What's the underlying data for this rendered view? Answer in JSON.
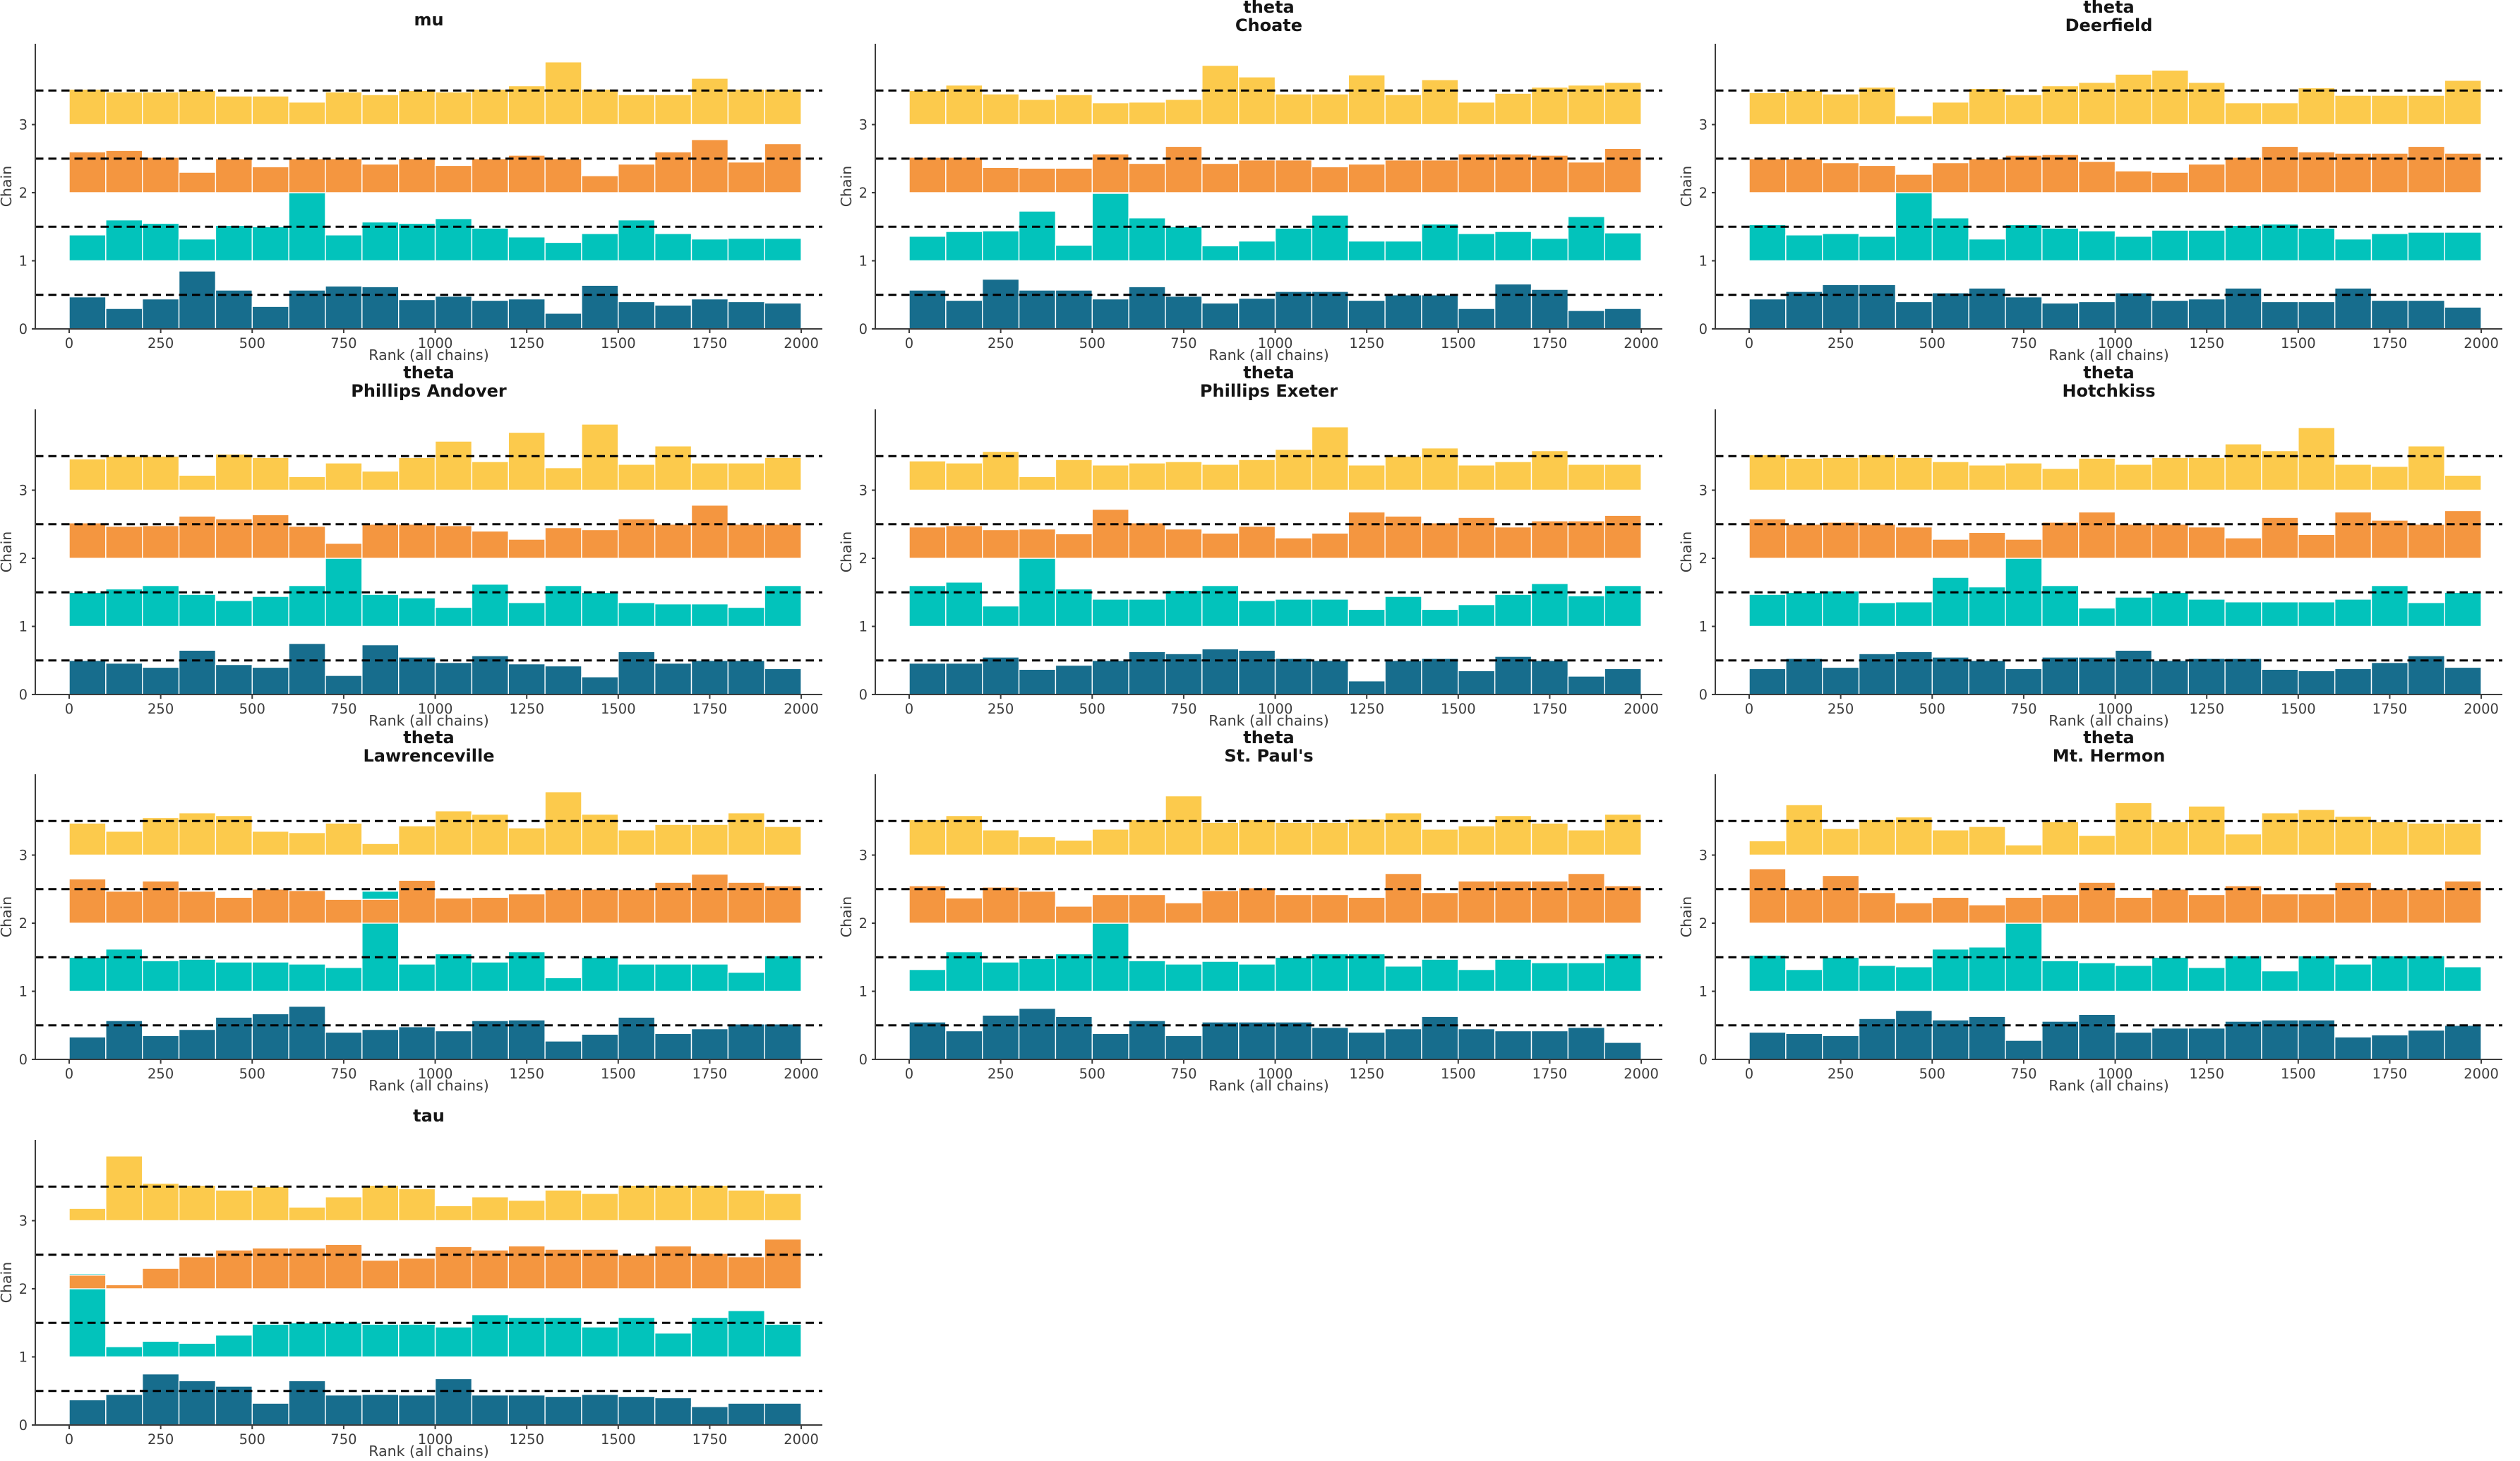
{
  "figure": {
    "background": "#ffffff",
    "grid": {
      "columns": 3,
      "rows": 4,
      "filled_panels": 10,
      "empty_cells": 2
    }
  },
  "chart_data": {
    "type": "bar",
    "subtype": "mcmc-rank-histogram-grid",
    "title": "",
    "xlabel": "Rank (all chains)",
    "ylabel": "Chain",
    "x": {
      "label": "Rank (all chains)",
      "range": [
        0,
        2000
      ],
      "bins": 20,
      "bin_width": 100,
      "ticks": [
        0,
        250,
        500,
        750,
        1000,
        1250,
        1500,
        1750,
        2000
      ],
      "tick_labels": [
        "0",
        "250",
        "500",
        "750",
        "1000",
        "1250",
        "1500",
        "1750",
        "2000"
      ]
    },
    "y": {
      "label": "Chain",
      "range": [
        0,
        4.19
      ],
      "ticks": [
        0,
        1,
        2,
        3
      ],
      "tick_labels": [
        "0",
        "1",
        "2",
        "3"
      ]
    },
    "reference_lines": [
      0.5,
      1.5,
      2.5,
      3.5
    ],
    "reference_line_color": "#000000",
    "grid_on": false,
    "legend": "none",
    "chains": [
      {
        "name": "chain-1",
        "baseline": 0,
        "color": "#176D8D"
      },
      {
        "name": "chain-2",
        "baseline": 1,
        "color": "#02C3BB"
      },
      {
        "name": "chain-3",
        "baseline": 2,
        "color": "#F49640"
      },
      {
        "name": "chain-4",
        "baseline": 3,
        "color": "#FCCA4C"
      }
    ],
    "panels": [
      {
        "title_lines": [
          "mu"
        ],
        "chains": [
          [
            0.47,
            0.3,
            0.44,
            0.85,
            0.57,
            0.33,
            0.57,
            0.63,
            0.62,
            0.43,
            0.48,
            0.42,
            0.44,
            0.23,
            0.64,
            0.4,
            0.35,
            0.44,
            0.4,
            0.38
          ],
          [
            0.38,
            0.6,
            0.55,
            0.32,
            0.52,
            0.5,
            1.0,
            0.38,
            0.57,
            0.55,
            0.62,
            0.48,
            0.35,
            0.27,
            0.4,
            0.6,
            0.4,
            0.32,
            0.33,
            0.33
          ],
          [
            0.6,
            0.62,
            0.52,
            0.3,
            0.5,
            0.38,
            0.5,
            0.5,
            0.42,
            0.5,
            0.4,
            0.5,
            0.55,
            0.5,
            0.25,
            0.42,
            0.6,
            0.78,
            0.45,
            0.72
          ],
          [
            0.52,
            0.48,
            0.48,
            0.5,
            0.42,
            0.42,
            0.33,
            0.48,
            0.44,
            0.5,
            0.48,
            0.52,
            0.57,
            0.92,
            0.52,
            0.44,
            0.44,
            0.68,
            0.52,
            0.52
          ]
        ]
      },
      {
        "title_lines": [
          "theta",
          "Choate"
        ],
        "chains": [
          [
            0.57,
            0.42,
            0.73,
            0.57,
            0.57,
            0.44,
            0.62,
            0.48,
            0.38,
            0.45,
            0.55,
            0.55,
            0.42,
            0.5,
            0.5,
            0.3,
            0.66,
            0.58,
            0.27,
            0.3
          ],
          [
            0.36,
            0.43,
            0.44,
            0.73,
            0.23,
            0.99,
            0.63,
            0.5,
            0.22,
            0.29,
            0.48,
            0.67,
            0.29,
            0.29,
            0.54,
            0.4,
            0.43,
            0.33,
            0.65,
            0.41
          ],
          [
            0.52,
            0.52,
            0.37,
            0.36,
            0.36,
            0.57,
            0.43,
            0.68,
            0.43,
            0.48,
            0.48,
            0.38,
            0.42,
            0.48,
            0.48,
            0.57,
            0.57,
            0.55,
            0.45,
            0.65
          ],
          [
            0.5,
            0.58,
            0.45,
            0.37,
            0.44,
            0.32,
            0.33,
            0.37,
            0.87,
            0.7,
            0.45,
            0.45,
            0.73,
            0.44,
            0.66,
            0.33,
            0.46,
            0.55,
            0.58,
            0.62
          ]
        ]
      },
      {
        "title_lines": [
          "theta",
          "Deerfield"
        ],
        "chains": [
          [
            0.44,
            0.55,
            0.65,
            0.65,
            0.4,
            0.53,
            0.6,
            0.47,
            0.38,
            0.4,
            0.53,
            0.42,
            0.44,
            0.6,
            0.4,
            0.4,
            0.6,
            0.42,
            0.42,
            0.32
          ],
          [
            0.53,
            0.38,
            0.4,
            0.36,
            1.0,
            0.63,
            0.32,
            0.53,
            0.48,
            0.44,
            0.36,
            0.45,
            0.45,
            0.52,
            0.54,
            0.48,
            0.32,
            0.4,
            0.42,
            0.42
          ],
          [
            0.5,
            0.5,
            0.44,
            0.4,
            0.27,
            0.44,
            0.5,
            0.55,
            0.56,
            0.46,
            0.32,
            0.3,
            0.42,
            0.52,
            0.68,
            0.6,
            0.58,
            0.58,
            0.68,
            0.58
          ],
          [
            0.47,
            0.5,
            0.45,
            0.55,
            0.13,
            0.33,
            0.53,
            0.44,
            0.57,
            0.62,
            0.74,
            0.8,
            0.62,
            0.32,
            0.32,
            0.54,
            0.43,
            0.43,
            0.43,
            0.65
          ]
        ]
      },
      {
        "title_lines": [
          "theta",
          "Phillips Andover"
        ],
        "chains": [
          [
            0.5,
            0.46,
            0.4,
            0.65,
            0.44,
            0.4,
            0.75,
            0.28,
            0.73,
            0.55,
            0.47,
            0.57,
            0.45,
            0.42,
            0.26,
            0.63,
            0.46,
            0.5,
            0.5,
            0.38
          ],
          [
            0.5,
            0.55,
            0.6,
            0.47,
            0.38,
            0.44,
            0.6,
            1.0,
            0.47,
            0.42,
            0.28,
            0.62,
            0.35,
            0.6,
            0.5,
            0.35,
            0.33,
            0.33,
            0.28,
            0.6
          ],
          [
            0.52,
            0.47,
            0.48,
            0.62,
            0.58,
            0.64,
            0.47,
            0.22,
            0.5,
            0.5,
            0.48,
            0.4,
            0.28,
            0.45,
            0.42,
            0.58,
            0.5,
            0.78,
            0.5,
            0.5
          ],
          [
            0.46,
            0.5,
            0.5,
            0.22,
            0.53,
            0.48,
            0.2,
            0.4,
            0.28,
            0.48,
            0.72,
            0.42,
            0.85,
            0.33,
            0.97,
            0.38,
            0.65,
            0.4,
            0.4,
            0.48
          ]
        ]
      },
      {
        "title_lines": [
          "theta",
          "Phillips Exeter"
        ],
        "chains": [
          [
            0.46,
            0.46,
            0.55,
            0.37,
            0.43,
            0.5,
            0.63,
            0.6,
            0.67,
            0.65,
            0.53,
            0.5,
            0.2,
            0.5,
            0.53,
            0.35,
            0.56,
            0.5,
            0.27,
            0.38
          ],
          [
            0.6,
            0.65,
            0.3,
            1.0,
            0.55,
            0.4,
            0.4,
            0.53,
            0.6,
            0.38,
            0.4,
            0.4,
            0.25,
            0.44,
            0.25,
            0.32,
            0.47,
            0.63,
            0.45,
            0.6
          ],
          [
            0.46,
            0.48,
            0.42,
            0.43,
            0.36,
            0.72,
            0.52,
            0.43,
            0.37,
            0.47,
            0.3,
            0.37,
            0.68,
            0.62,
            0.52,
            0.6,
            0.46,
            0.55,
            0.55,
            0.63
          ],
          [
            0.43,
            0.4,
            0.57,
            0.2,
            0.45,
            0.37,
            0.4,
            0.42,
            0.38,
            0.45,
            0.6,
            0.93,
            0.37,
            0.5,
            0.62,
            0.37,
            0.42,
            0.58,
            0.38,
            0.38
          ]
        ]
      },
      {
        "title_lines": [
          "theta",
          "Hotchkiss"
        ],
        "chains": [
          [
            0.38,
            0.53,
            0.4,
            0.6,
            0.63,
            0.55,
            0.5,
            0.38,
            0.55,
            0.55,
            0.65,
            0.5,
            0.53,
            0.53,
            0.37,
            0.35,
            0.38,
            0.47,
            0.57,
            0.4
          ],
          [
            0.47,
            0.5,
            0.52,
            0.35,
            0.36,
            0.72,
            0.58,
            1.0,
            0.6,
            0.27,
            0.43,
            0.5,
            0.4,
            0.36,
            0.36,
            0.36,
            0.4,
            0.6,
            0.35,
            0.5
          ],
          [
            0.58,
            0.5,
            0.53,
            0.5,
            0.46,
            0.28,
            0.38,
            0.28,
            0.53,
            0.68,
            0.5,
            0.5,
            0.46,
            0.3,
            0.6,
            0.35,
            0.68,
            0.56,
            0.5,
            0.7
          ],
          [
            0.52,
            0.47,
            0.48,
            0.52,
            0.48,
            0.42,
            0.37,
            0.4,
            0.32,
            0.47,
            0.38,
            0.48,
            0.48,
            0.68,
            0.58,
            0.92,
            0.38,
            0.35,
            0.65,
            0.22
          ]
        ]
      },
      {
        "title_lines": [
          "theta",
          "Lawrenceville"
        ],
        "chains": [
          [
            0.33,
            0.57,
            0.35,
            0.44,
            0.62,
            0.67,
            0.78,
            0.4,
            0.44,
            0.48,
            0.42,
            0.57,
            0.58,
            0.27,
            0.37,
            0.62,
            0.38,
            0.45,
            0.52,
            0.52
          ],
          [
            0.5,
            0.62,
            0.45,
            0.47,
            0.43,
            0.43,
            0.4,
            0.35,
            1.47,
            0.4,
            0.55,
            0.43,
            0.58,
            0.2,
            0.5,
            0.4,
            0.4,
            0.4,
            0.28,
            0.52
          ],
          [
            0.65,
            0.47,
            0.62,
            0.47,
            0.38,
            0.5,
            0.48,
            0.35,
            0.35,
            0.63,
            0.37,
            0.38,
            0.43,
            0.5,
            0.5,
            0.5,
            0.6,
            0.72,
            0.6,
            0.55
          ],
          [
            0.47,
            0.35,
            0.55,
            0.62,
            0.58,
            0.35,
            0.33,
            0.47,
            0.17,
            0.43,
            0.65,
            0.6,
            0.4,
            0.93,
            0.6,
            0.37,
            0.45,
            0.45,
            0.62,
            0.42
          ]
        ]
      },
      {
        "title_lines": [
          "theta",
          "St. Paul's"
        ],
        "chains": [
          [
            0.55,
            0.42,
            0.65,
            0.75,
            0.63,
            0.38,
            0.57,
            0.35,
            0.55,
            0.55,
            0.55,
            0.47,
            0.4,
            0.45,
            0.63,
            0.45,
            0.42,
            0.42,
            0.47,
            0.25
          ],
          [
            0.32,
            0.58,
            0.43,
            0.48,
            0.55,
            1.0,
            0.45,
            0.4,
            0.44,
            0.4,
            0.5,
            0.55,
            0.55,
            0.37,
            0.47,
            0.32,
            0.47,
            0.42,
            0.42,
            0.55
          ],
          [
            0.55,
            0.37,
            0.53,
            0.47,
            0.25,
            0.42,
            0.42,
            0.3,
            0.48,
            0.52,
            0.42,
            0.42,
            0.38,
            0.73,
            0.45,
            0.62,
            0.62,
            0.62,
            0.73,
            0.55
          ],
          [
            0.52,
            0.58,
            0.37,
            0.27,
            0.22,
            0.38,
            0.52,
            0.87,
            0.48,
            0.52,
            0.48,
            0.48,
            0.53,
            0.62,
            0.38,
            0.43,
            0.58,
            0.47,
            0.37,
            0.6
          ]
        ]
      },
      {
        "title_lines": [
          "theta",
          "Mt. Hermon"
        ],
        "chains": [
          [
            0.4,
            0.38,
            0.35,
            0.6,
            0.72,
            0.58,
            0.63,
            0.28,
            0.56,
            0.66,
            0.4,
            0.46,
            0.46,
            0.56,
            0.58,
            0.58,
            0.33,
            0.36,
            0.43,
            0.5
          ],
          [
            0.53,
            0.32,
            0.5,
            0.38,
            0.36,
            0.62,
            0.65,
            1.0,
            0.45,
            0.42,
            0.38,
            0.5,
            0.35,
            0.52,
            0.3,
            0.52,
            0.4,
            0.52,
            0.52,
            0.36
          ],
          [
            0.8,
            0.5,
            0.7,
            0.45,
            0.3,
            0.38,
            0.27,
            0.38,
            0.42,
            0.6,
            0.38,
            0.5,
            0.42,
            0.55,
            0.43,
            0.43,
            0.6,
            0.5,
            0.5,
            0.62
          ],
          [
            0.21,
            0.74,
            0.39,
            0.52,
            0.56,
            0.37,
            0.42,
            0.15,
            0.49,
            0.29,
            0.77,
            0.49,
            0.72,
            0.31,
            0.62,
            0.67,
            0.57,
            0.49,
            0.47,
            0.47
          ]
        ]
      },
      {
        "title_lines": [
          "tau"
        ],
        "chains": [
          [
            0.37,
            0.45,
            0.75,
            0.65,
            0.57,
            0.32,
            0.65,
            0.44,
            0.45,
            0.44,
            0.68,
            0.44,
            0.44,
            0.42,
            0.45,
            0.42,
            0.4,
            0.27,
            0.32,
            0.32
          ],
          [
            1.22,
            0.15,
            0.23,
            0.2,
            0.32,
            0.48,
            0.5,
            0.5,
            0.48,
            0.48,
            0.44,
            0.62,
            0.58,
            0.58,
            0.44,
            0.58,
            0.35,
            0.58,
            0.68,
            0.48
          ],
          [
            0.2,
            0.06,
            0.3,
            0.47,
            0.57,
            0.6,
            0.6,
            0.65,
            0.42,
            0.45,
            0.62,
            0.57,
            0.63,
            0.58,
            0.58,
            0.5,
            0.63,
            0.52,
            0.47,
            0.73
          ],
          [
            0.18,
            0.95,
            0.55,
            0.52,
            0.45,
            0.5,
            0.2,
            0.35,
            0.52,
            0.47,
            0.22,
            0.35,
            0.3,
            0.45,
            0.4,
            0.52,
            0.52,
            0.52,
            0.45,
            0.4
          ]
        ]
      }
    ]
  }
}
